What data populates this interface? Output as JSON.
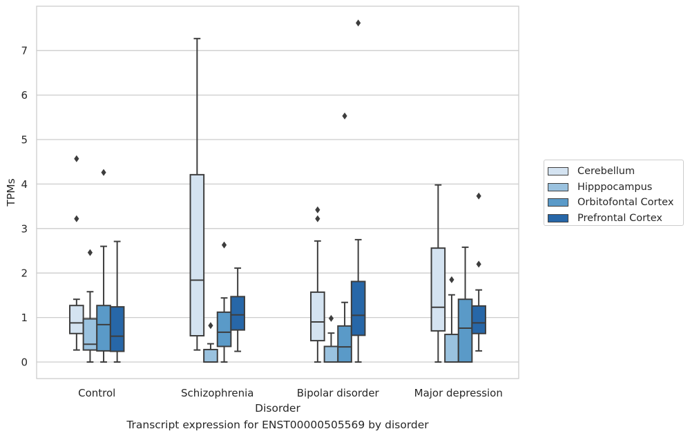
{
  "chart_data": {
    "type": "box",
    "xlabel": "Disorder",
    "ylabel": "TPMs",
    "ylim": [
      -0.36,
      7.98
    ],
    "yticks": [
      0,
      1,
      2,
      3,
      4,
      5,
      6,
      7
    ],
    "grid": "horizontal",
    "legend_position": "right",
    "categories": [
      "Control",
      "Schizophrenia",
      "Bipolar disorder",
      "Major depression"
    ],
    "series": [
      {
        "name": "Cerebellum",
        "color": "#d4e3f1",
        "boxes": [
          {
            "whislo": 0.27,
            "q1": 0.64,
            "med": 0.88,
            "q3": 1.27,
            "whishi": 1.41,
            "fliers": [
              3.22,
              4.57
            ]
          },
          {
            "whislo": 0.27,
            "q1": 0.59,
            "med": 1.84,
            "q3": 4.21,
            "whishi": 7.27,
            "fliers": []
          },
          {
            "whislo": 0.0,
            "q1": 0.48,
            "med": 0.9,
            "q3": 1.57,
            "whishi": 2.72,
            "fliers": [
              3.22,
              3.42
            ]
          },
          {
            "whislo": 0.0,
            "q1": 0.7,
            "med": 1.23,
            "q3": 2.56,
            "whishi": 3.98,
            "fliers": []
          }
        ]
      },
      {
        "name": "Hipppocampus",
        "color": "#9ac2df",
        "boxes": [
          {
            "whislo": 0.0,
            "q1": 0.27,
            "med": 0.4,
            "q3": 0.97,
            "whishi": 1.58,
            "fliers": [
              2.46
            ]
          },
          {
            "whislo": 0.0,
            "q1": 0.0,
            "med": 0.0,
            "q3": 0.28,
            "whishi": 0.41,
            "fliers": [
              0.82
            ]
          },
          {
            "whislo": 0.0,
            "q1": 0.0,
            "med": 0.0,
            "q3": 0.35,
            "whishi": 0.65,
            "fliers": [
              0.98
            ]
          },
          {
            "whislo": 0.0,
            "q1": 0.0,
            "med": 0.0,
            "q3": 0.62,
            "whishi": 1.51,
            "fliers": [
              1.85
            ]
          }
        ]
      },
      {
        "name": "Orbitofontal Cortex",
        "color": "#5a9ac8",
        "boxes": [
          {
            "whislo": 0.0,
            "q1": 0.25,
            "med": 0.84,
            "q3": 1.27,
            "whishi": 2.6,
            "fliers": [
              4.26
            ]
          },
          {
            "whislo": 0.0,
            "q1": 0.35,
            "med": 0.67,
            "q3": 1.12,
            "whishi": 1.44,
            "fliers": [
              2.63
            ]
          },
          {
            "whislo": 0.0,
            "q1": 0.0,
            "med": 0.34,
            "q3": 0.81,
            "whishi": 1.34,
            "fliers": [
              5.53
            ]
          },
          {
            "whislo": 0.0,
            "q1": 0.0,
            "med": 0.76,
            "q3": 1.41,
            "whishi": 2.58,
            "fliers": []
          }
        ]
      },
      {
        "name": "Prefrontal Cortex",
        "color": "#2767a8",
        "boxes": [
          {
            "whislo": 0.0,
            "q1": 0.24,
            "med": 0.58,
            "q3": 1.24,
            "whishi": 2.71,
            "fliers": []
          },
          {
            "whislo": 0.24,
            "q1": 0.72,
            "med": 1.06,
            "q3": 1.47,
            "whishi": 2.11,
            "fliers": []
          },
          {
            "whislo": 0.0,
            "q1": 0.6,
            "med": 1.05,
            "q3": 1.81,
            "whishi": 2.75,
            "fliers": [
              7.62
            ]
          },
          {
            "whislo": 0.25,
            "q1": 0.64,
            "med": 0.88,
            "q3": 1.26,
            "whishi": 1.62,
            "fliers": [
              2.2,
              3.73
            ]
          }
        ]
      }
    ]
  },
  "caption": "Transcript expression for ENST00000505569 by disorder"
}
